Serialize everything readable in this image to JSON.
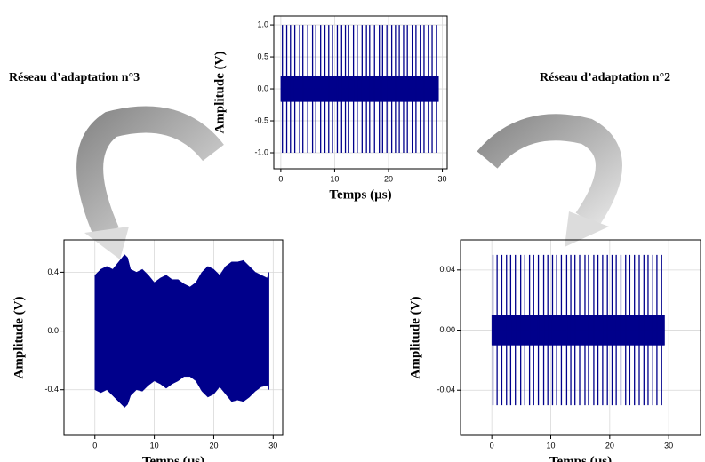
{
  "chart_data": [
    {
      "type": "signal",
      "x_label": "Temps (µs)",
      "y_label": "Amplitude (V)",
      "color": "#00008b",
      "grid": true,
      "xlim": [
        -1.3,
        30.9
      ],
      "ylim": [
        -1.25,
        1.14
      ],
      "xticks": [
        0,
        10,
        20,
        30
      ],
      "yticks": [
        {
          "value": -1.0,
          "label": "-1.0"
        },
        -0.5,
        {
          "value": 0.0,
          "label": "0.0"
        },
        0.5,
        {
          "value": 1.0,
          "label": "1.0"
        }
      ],
      "x": [
        0,
        29.3
      ],
      "upper": [
        0.2,
        0.2
      ],
      "lower": [
        -0.2,
        -0.2
      ],
      "spikes_x": [
        0.3,
        1.1,
        1.8,
        2.6,
        3.5,
        4.1,
        5.0,
        5.9,
        6.5,
        7.4,
        8.2,
        8.9,
        9.6,
        10.5,
        11.3,
        12.0,
        12.6,
        13.5,
        14.2,
        15.1,
        15.9,
        16.5,
        17.4,
        18.3,
        18.9,
        19.7,
        20.6,
        21.3,
        22.0,
        22.8,
        23.5,
        24.4,
        25.1,
        25.9,
        26.6,
        27.4,
        28.1,
        28.9
      ],
      "spikes_values": [
        1.0,
        1.0,
        1.0,
        1.0,
        1.0,
        1.0,
        1.0,
        1.0,
        1.0,
        1.0,
        1.0,
        1.0,
        1.0,
        1.0,
        1.0,
        1.0,
        1.0,
        1.0,
        1.0,
        1.0,
        1.0,
        1.0,
        1.0,
        1.0,
        1.0,
        1.0,
        1.0,
        1.0,
        1.0,
        1.0,
        1.0,
        1.0,
        1.0,
        1.0,
        1.0,
        1.0,
        1.0,
        1.0
      ]
    },
    {
      "type": "signal",
      "x_label": "Temps (µs)",
      "y_label": "Amplitude (V)",
      "color": "#00008b",
      "grid": true,
      "xlim": [
        -5.2,
        31.6
      ],
      "ylim": [
        -0.71,
        0.62
      ],
      "xticks": [
        0,
        10,
        20,
        30
      ],
      "yticks": [
        -0.4,
        {
          "value": 0.0,
          "label": "0.0"
        },
        0.4
      ],
      "x": [
        0,
        1,
        2,
        3,
        4,
        5,
        5.5,
        6,
        7,
        8,
        9,
        10,
        11,
        12,
        13,
        14,
        15,
        16,
        17,
        18,
        19,
        20,
        21,
        22,
        23,
        24,
        25,
        26,
        27,
        28,
        29,
        29.3
      ],
      "upper": [
        0.38,
        0.42,
        0.44,
        0.42,
        0.47,
        0.52,
        0.5,
        0.42,
        0.4,
        0.42,
        0.38,
        0.33,
        0.36,
        0.38,
        0.35,
        0.35,
        0.32,
        0.3,
        0.33,
        0.4,
        0.44,
        0.42,
        0.38,
        0.44,
        0.47,
        0.47,
        0.48,
        0.44,
        0.4,
        0.38,
        0.36,
        0.4
      ],
      "lower": [
        -0.4,
        -0.42,
        -0.4,
        -0.44,
        -0.48,
        -0.52,
        -0.5,
        -0.44,
        -0.4,
        -0.41,
        -0.37,
        -0.34,
        -0.36,
        -0.39,
        -0.36,
        -0.34,
        -0.31,
        -0.31,
        -0.34,
        -0.41,
        -0.45,
        -0.43,
        -0.38,
        -0.43,
        -0.48,
        -0.47,
        -0.48,
        -0.45,
        -0.41,
        -0.38,
        -0.37,
        -0.4
      ],
      "spikes_x": [],
      "spikes_values": []
    },
    {
      "type": "signal",
      "x_label": "Temps (µs)",
      "y_label": "Amplitude (V)",
      "color": "#00008b",
      "grid": true,
      "xlim": [
        -5.3,
        35.4
      ],
      "ylim": [
        -0.07,
        0.06
      ],
      "xticks": [
        0,
        10,
        20,
        30
      ],
      "yticks": [
        -0.04,
        {
          "value": 0.0,
          "label": "0.00"
        },
        0.04
      ],
      "x": [
        0,
        29.3
      ],
      "upper": [
        0.01,
        0.01
      ],
      "lower": [
        -0.01,
        -0.01
      ],
      "spikes_x": [
        0.2,
        0.9,
        1.7,
        2.5,
        3.2,
        4.0,
        4.9,
        5.6,
        6.4,
        7.1,
        7.9,
        8.8,
        9.5,
        10.3,
        11.0,
        11.8,
        12.7,
        13.4,
        14.1,
        14.9,
        15.8,
        16.4,
        17.3,
        18.0,
        18.8,
        19.6,
        20.4,
        21.1,
        21.9,
        22.7,
        23.4,
        24.2,
        25.0,
        25.8,
        26.5,
        27.3,
        28.0,
        28.8
      ],
      "spikes_values": [
        0.05,
        0.05,
        0.05,
        0.05,
        0.05,
        0.05,
        0.05,
        0.05,
        0.05,
        0.05,
        0.05,
        0.05,
        0.05,
        0.05,
        0.05,
        0.05,
        0.05,
        0.05,
        0.05,
        0.05,
        0.05,
        0.05,
        0.05,
        0.05,
        0.05,
        0.05,
        0.05,
        0.05,
        0.05,
        0.05,
        0.05,
        0.05,
        0.05,
        0.05,
        0.05,
        0.05,
        0.05,
        0.05
      ]
    }
  ],
  "annotations": [
    "Réseau d’adaptation n°3",
    "Réseau d’adaptation n°2"
  ]
}
